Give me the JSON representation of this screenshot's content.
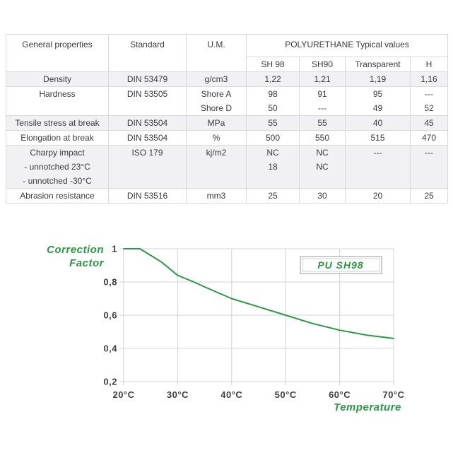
{
  "table": {
    "header": {
      "col1": "General properties",
      "col2": "Standard",
      "col3": "U.M.",
      "group": "POLYURETHANE Typical values",
      "subcols": [
        "SH 98",
        "SH90",
        "Transparent",
        "H"
      ]
    },
    "rows": [
      {
        "property": [
          "Density"
        ],
        "standard": "DIN 53479",
        "um": [
          "g/cm3"
        ],
        "values": [
          [
            "1,22"
          ],
          [
            "1,21"
          ],
          [
            "1,19"
          ],
          [
            "1,16"
          ]
        ]
      },
      {
        "property": [
          "Hardness"
        ],
        "standard": "DIN 53505",
        "um": [
          "Shore A",
          "Shore D"
        ],
        "values": [
          [
            "98",
            "50"
          ],
          [
            "91",
            "---"
          ],
          [
            "95",
            "49"
          ],
          [
            "---",
            "52"
          ]
        ]
      },
      {
        "property": [
          "Tensile stress at break"
        ],
        "standard": "DIN 53504",
        "um": [
          "MPa"
        ],
        "values": [
          [
            "55"
          ],
          [
            "55"
          ],
          [
            "40"
          ],
          [
            "45"
          ]
        ]
      },
      {
        "property": [
          "Elongation at break"
        ],
        "standard": "DIN 53504",
        "um": [
          "%"
        ],
        "values": [
          [
            "500"
          ],
          [
            "550"
          ],
          [
            "515"
          ],
          [
            "470"
          ]
        ]
      },
      {
        "property": [
          "Charpy impact",
          "- unnotched 23°C",
          "- unnotched -30°C"
        ],
        "standard": "ISO 179",
        "um": [
          "kj/m2"
        ],
        "values": [
          [
            "NC",
            "18"
          ],
          [
            "NC",
            "NC"
          ],
          [
            "---"
          ],
          [
            "---"
          ]
        ]
      },
      {
        "property": [
          "Abrasion resistance"
        ],
        "standard": "DIN 53516",
        "um": [
          "mm3"
        ],
        "values": [
          [
            "25"
          ],
          [
            "30"
          ],
          [
            "20"
          ],
          [
            "25"
          ]
        ]
      }
    ]
  },
  "chart_data": {
    "type": "line",
    "title": "",
    "ylabel": "Correction Factor",
    "ylabel_lines": [
      "Correction",
      "Factor"
    ],
    "xlabel": "Temperature",
    "legend": "PU SH98",
    "legend_position": "top-right-inside",
    "grid": true,
    "xlim": [
      20,
      70
    ],
    "ylim": [
      0.2,
      1.0
    ],
    "x_tick_values": [
      20,
      30,
      40,
      50,
      60,
      70
    ],
    "x_tick_labels": [
      "20°C",
      "30°C",
      "40°C",
      "50°C",
      "60°C",
      "70°C"
    ],
    "y_tick_values": [
      1.0,
      0.8,
      0.6,
      0.4,
      0.2
    ],
    "y_tick_labels": [
      "1",
      "0,8",
      "0,6",
      "0,4",
      "0,2"
    ],
    "series": [
      {
        "name": "PU SH98",
        "x": [
          20,
          23,
          25,
          27,
          30,
          33,
          35,
          40,
          45,
          50,
          55,
          60,
          65,
          70
        ],
        "y": [
          1.0,
          1.0,
          0.96,
          0.92,
          0.84,
          0.8,
          0.77,
          0.7,
          0.65,
          0.6,
          0.55,
          0.51,
          0.48,
          0.46
        ]
      }
    ],
    "colors": {
      "line": "#289a44",
      "grid": "#d3d3d3",
      "tick_text": "#3f3f3f",
      "label_text": "#289a44",
      "legend_border": "#9a9a9a"
    }
  }
}
